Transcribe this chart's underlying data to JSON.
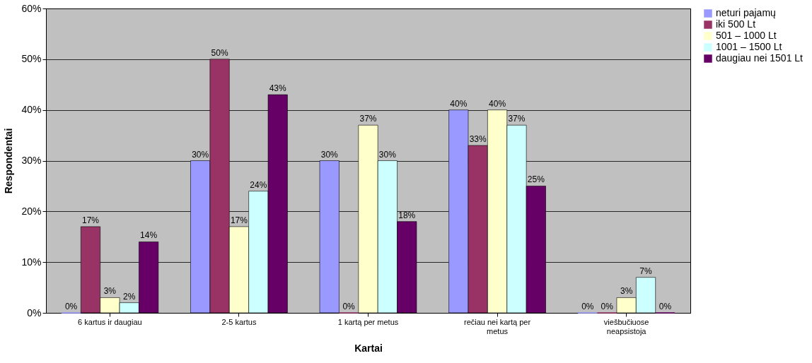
{
  "chart_data": {
    "type": "bar",
    "xlabel": "Kartai",
    "ylabel": "Respondentai",
    "categories": [
      "6 kartus ir daugiau",
      "2-5 kartus",
      "1 kartą per metus",
      "rečiau nei kartą per metus",
      "viešbučiuose neapsistoja"
    ],
    "series": [
      {
        "name": "neturi pajamų",
        "color": "#9999ff",
        "values": [
          0,
          30,
          30,
          40,
          0
        ],
        "value_labels": [
          "0%",
          "30%",
          "30%",
          "40%",
          "0%"
        ]
      },
      {
        "name": "iki 500 Lt",
        "color": "#993366",
        "values": [
          17,
          50,
          0,
          33,
          0
        ],
        "value_labels": [
          "17%",
          "50%",
          "0%",
          "33%",
          "0%"
        ]
      },
      {
        "name": "501 – 1000 Lt",
        "color": "#ffffcc",
        "values": [
          3,
          17,
          37,
          40,
          3
        ],
        "value_labels": [
          "3%",
          "17%",
          "37%",
          "40%",
          "3%"
        ]
      },
      {
        "name": "1001 – 1500 Lt",
        "color": "#ccffff",
        "values": [
          2,
          24,
          30,
          37,
          7
        ],
        "value_labels": [
          "2%",
          "24%",
          "30%",
          "37%",
          "7%"
        ]
      },
      {
        "name": "daugiau nei 1501 Lt",
        "color": "#660066",
        "values": [
          14,
          43,
          18,
          25,
          0
        ],
        "value_labels": [
          "14%",
          "43%",
          "18%",
          "25%",
          "0%"
        ]
      }
    ],
    "ylim": [
      0,
      60
    ],
    "yticks": [
      {
        "value": 0,
        "label": "0%"
      },
      {
        "value": 10,
        "label": "10%"
      },
      {
        "value": 20,
        "label": "20%"
      },
      {
        "value": 30,
        "label": "30%"
      },
      {
        "value": 40,
        "label": "40%"
      },
      {
        "value": 50,
        "label": "50%"
      },
      {
        "value": 60,
        "label": "60%"
      }
    ],
    "grid": "y",
    "legend": "right"
  }
}
